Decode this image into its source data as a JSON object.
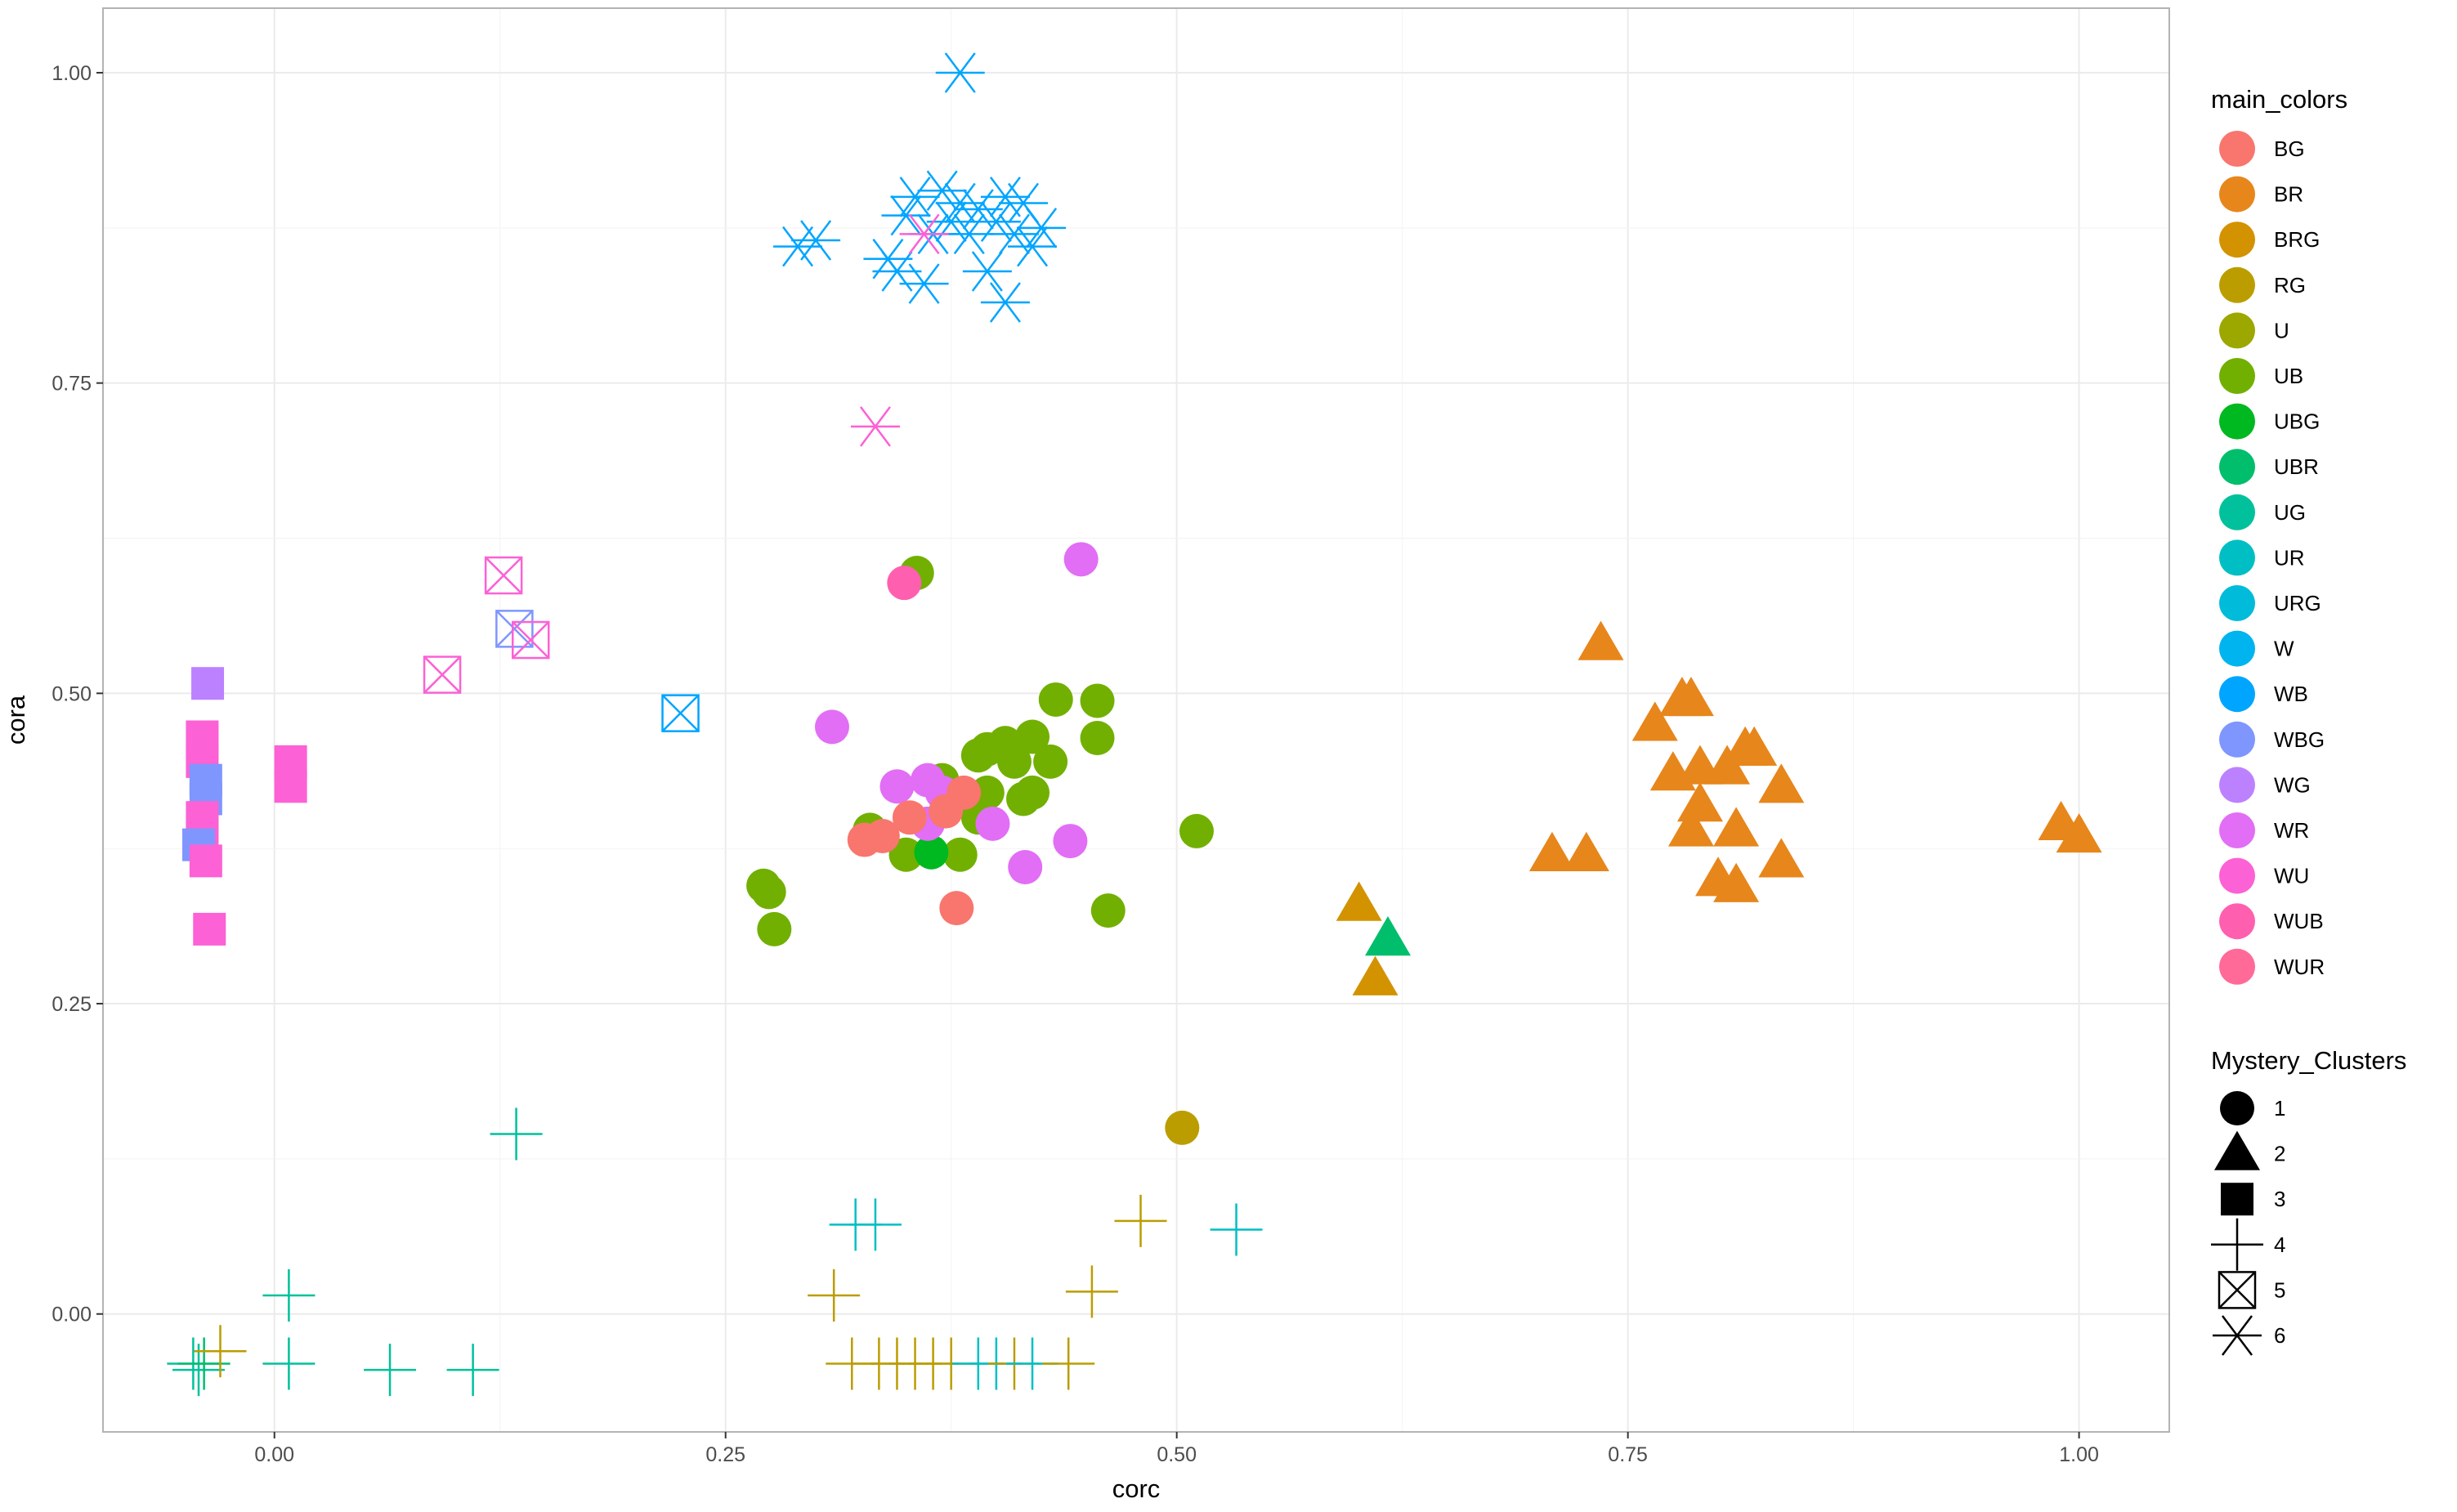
{
  "chart_data": {
    "type": "scatter",
    "title": "",
    "xlabel": "corc",
    "ylabel": "cora",
    "xlim": [
      -0.095,
      1.05
    ],
    "ylim": [
      -0.095,
      1.052
    ],
    "x_ticks": [
      "0.00",
      "0.25",
      "0.50",
      "0.75",
      "1.00"
    ],
    "y_ticks": [
      "0.00",
      "0.25",
      "0.50",
      "0.75",
      "1.00"
    ],
    "x_tick_values": [
      0,
      0.25,
      0.5,
      0.75,
      1.0
    ],
    "y_tick_values": [
      0,
      0.25,
      0.5,
      0.75,
      1.0
    ],
    "grid": true,
    "legend_placement": "right",
    "color_legend": {
      "title": "main_colors",
      "items": [
        {
          "label": "BG",
          "color": "#F8766D"
        },
        {
          "label": "BR",
          "color": "#E7861B"
        },
        {
          "label": "BRG",
          "color": "#D39200"
        },
        {
          "label": "RG",
          "color": "#BB9D00"
        },
        {
          "label": "U",
          "color": "#9CA700"
        },
        {
          "label": "UB",
          "color": "#71B000"
        },
        {
          "label": "UBG",
          "color": "#00B81F"
        },
        {
          "label": "UBR",
          "color": "#00BE6C"
        },
        {
          "label": "UG",
          "color": "#00C19B"
        },
        {
          "label": "UR",
          "color": "#00BFC4"
        },
        {
          "label": "URG",
          "color": "#00BBDA"
        },
        {
          "label": "W",
          "color": "#00B4EF"
        },
        {
          "label": "WB",
          "color": "#00A5FF"
        },
        {
          "label": "WBG",
          "color": "#7F96FF"
        },
        {
          "label": "WG",
          "color": "#BC81FF"
        },
        {
          "label": "WR",
          "color": "#E16EF5"
        },
        {
          "label": "WU",
          "color": "#FC61D5"
        },
        {
          "label": "WUB",
          "color": "#FF5FAF"
        },
        {
          "label": "WUR",
          "color": "#FF6A98"
        }
      ]
    },
    "shape_legend": {
      "title": "Mystery_Clusters",
      "items": [
        {
          "label": "1",
          "shape": "circle"
        },
        {
          "label": "2",
          "shape": "triangle"
        },
        {
          "label": "3",
          "shape": "square"
        },
        {
          "label": "4",
          "shape": "plus"
        },
        {
          "label": "5",
          "shape": "boxcross"
        },
        {
          "label": "6",
          "shape": "asterisk"
        }
      ]
    },
    "points": [
      {
        "x": 0.38,
        "y": 1.0,
        "shape": "asterisk",
        "color": "WB"
      },
      {
        "x": 0.29,
        "y": 0.86,
        "shape": "asterisk",
        "color": "WB"
      },
      {
        "x": 0.3,
        "y": 0.865,
        "shape": "asterisk",
        "color": "WB"
      },
      {
        "x": 0.34,
        "y": 0.85,
        "shape": "asterisk",
        "color": "WB"
      },
      {
        "x": 0.345,
        "y": 0.84,
        "shape": "asterisk",
        "color": "WB"
      },
      {
        "x": 0.35,
        "y": 0.885,
        "shape": "asterisk",
        "color": "WB"
      },
      {
        "x": 0.355,
        "y": 0.9,
        "shape": "asterisk",
        "color": "WB"
      },
      {
        "x": 0.36,
        "y": 0.83,
        "shape": "asterisk",
        "color": "WB"
      },
      {
        "x": 0.365,
        "y": 0.87,
        "shape": "asterisk",
        "color": "WB"
      },
      {
        "x": 0.37,
        "y": 0.905,
        "shape": "asterisk",
        "color": "WB"
      },
      {
        "x": 0.375,
        "y": 0.88,
        "shape": "asterisk",
        "color": "WB"
      },
      {
        "x": 0.38,
        "y": 0.895,
        "shape": "asterisk",
        "color": "WB"
      },
      {
        "x": 0.385,
        "y": 0.87,
        "shape": "asterisk",
        "color": "WB"
      },
      {
        "x": 0.39,
        "y": 0.89,
        "shape": "asterisk",
        "color": "WB"
      },
      {
        "x": 0.395,
        "y": 0.84,
        "shape": "asterisk",
        "color": "WB"
      },
      {
        "x": 0.4,
        "y": 0.88,
        "shape": "asterisk",
        "color": "WB"
      },
      {
        "x": 0.405,
        "y": 0.815,
        "shape": "asterisk",
        "color": "WB"
      },
      {
        "x": 0.405,
        "y": 0.9,
        "shape": "asterisk",
        "color": "WB"
      },
      {
        "x": 0.41,
        "y": 0.87,
        "shape": "asterisk",
        "color": "WB"
      },
      {
        "x": 0.415,
        "y": 0.895,
        "shape": "asterisk",
        "color": "WB"
      },
      {
        "x": 0.42,
        "y": 0.86,
        "shape": "asterisk",
        "color": "WB"
      },
      {
        "x": 0.425,
        "y": 0.875,
        "shape": "asterisk",
        "color": "WB"
      },
      {
        "x": 0.36,
        "y": 0.87,
        "shape": "asterisk",
        "color": "WU"
      },
      {
        "x": 0.333,
        "y": 0.715,
        "shape": "asterisk",
        "color": "WU"
      },
      {
        "x": 0.127,
        "y": 0.595,
        "shape": "boxcross",
        "color": "WU"
      },
      {
        "x": 0.093,
        "y": 0.515,
        "shape": "boxcross",
        "color": "WU"
      },
      {
        "x": 0.133,
        "y": 0.552,
        "shape": "boxcross",
        "color": "WBG"
      },
      {
        "x": 0.142,
        "y": 0.543,
        "shape": "boxcross",
        "color": "WU"
      },
      {
        "x": 0.225,
        "y": 0.484,
        "shape": "boxcross",
        "color": "WB"
      },
      {
        "x": -0.037,
        "y": 0.508,
        "shape": "square",
        "color": "WG"
      },
      {
        "x": -0.04,
        "y": 0.465,
        "shape": "square",
        "color": "WU"
      },
      {
        "x": -0.04,
        "y": 0.445,
        "shape": "square",
        "color": "WU"
      },
      {
        "x": -0.038,
        "y": 0.43,
        "shape": "square",
        "color": "WBG"
      },
      {
        "x": -0.038,
        "y": 0.415,
        "shape": "square",
        "color": "WBG"
      },
      {
        "x": -0.04,
        "y": 0.4,
        "shape": "square",
        "color": "WU"
      },
      {
        "x": -0.04,
        "y": 0.385,
        "shape": "square",
        "color": "WU"
      },
      {
        "x": -0.042,
        "y": 0.378,
        "shape": "square",
        "color": "WBG"
      },
      {
        "x": -0.038,
        "y": 0.365,
        "shape": "square",
        "color": "WU"
      },
      {
        "x": -0.036,
        "y": 0.31,
        "shape": "square",
        "color": "WU"
      },
      {
        "x": 0.009,
        "y": 0.445,
        "shape": "square",
        "color": "WU"
      },
      {
        "x": 0.009,
        "y": 0.425,
        "shape": "square",
        "color": "WU"
      },
      {
        "x": 0.356,
        "y": 0.597,
        "shape": "circle",
        "color": "UB"
      },
      {
        "x": 0.349,
        "y": 0.589,
        "shape": "circle",
        "color": "WUB"
      },
      {
        "x": 0.447,
        "y": 0.608,
        "shape": "circle",
        "color": "WR"
      },
      {
        "x": 0.309,
        "y": 0.473,
        "shape": "circle",
        "color": "WR"
      },
      {
        "x": 0.433,
        "y": 0.495,
        "shape": "circle",
        "color": "UB"
      },
      {
        "x": 0.456,
        "y": 0.494,
        "shape": "circle",
        "color": "UB"
      },
      {
        "x": 0.456,
        "y": 0.464,
        "shape": "circle",
        "color": "UB"
      },
      {
        "x": 0.42,
        "y": 0.465,
        "shape": "circle",
        "color": "UB"
      },
      {
        "x": 0.405,
        "y": 0.46,
        "shape": "circle",
        "color": "UB"
      },
      {
        "x": 0.395,
        "y": 0.455,
        "shape": "circle",
        "color": "UB"
      },
      {
        "x": 0.39,
        "y": 0.45,
        "shape": "circle",
        "color": "UB"
      },
      {
        "x": 0.41,
        "y": 0.445,
        "shape": "circle",
        "color": "UB"
      },
      {
        "x": 0.43,
        "y": 0.445,
        "shape": "circle",
        "color": "UB"
      },
      {
        "x": 0.37,
        "y": 0.43,
        "shape": "circle",
        "color": "UB"
      },
      {
        "x": 0.395,
        "y": 0.42,
        "shape": "circle",
        "color": "UB"
      },
      {
        "x": 0.415,
        "y": 0.415,
        "shape": "circle",
        "color": "UB"
      },
      {
        "x": 0.42,
        "y": 0.42,
        "shape": "circle",
        "color": "UB"
      },
      {
        "x": 0.39,
        "y": 0.4,
        "shape": "circle",
        "color": "UB"
      },
      {
        "x": 0.33,
        "y": 0.39,
        "shape": "circle",
        "color": "UB"
      },
      {
        "x": 0.35,
        "y": 0.37,
        "shape": "circle",
        "color": "UB"
      },
      {
        "x": 0.38,
        "y": 0.37,
        "shape": "circle",
        "color": "UB"
      },
      {
        "x": 0.271,
        "y": 0.345,
        "shape": "circle",
        "color": "UB"
      },
      {
        "x": 0.274,
        "y": 0.34,
        "shape": "circle",
        "color": "UB"
      },
      {
        "x": 0.277,
        "y": 0.31,
        "shape": "circle",
        "color": "UB"
      },
      {
        "x": 0.462,
        "y": 0.325,
        "shape": "circle",
        "color": "UB"
      },
      {
        "x": 0.511,
        "y": 0.389,
        "shape": "circle",
        "color": "UB"
      },
      {
        "x": 0.364,
        "y": 0.372,
        "shape": "circle",
        "color": "UBG"
      },
      {
        "x": 0.345,
        "y": 0.425,
        "shape": "circle",
        "color": "WR"
      },
      {
        "x": 0.362,
        "y": 0.43,
        "shape": "circle",
        "color": "WR"
      },
      {
        "x": 0.37,
        "y": 0.42,
        "shape": "circle",
        "color": "WR"
      },
      {
        "x": 0.362,
        "y": 0.395,
        "shape": "circle",
        "color": "WR"
      },
      {
        "x": 0.398,
        "y": 0.395,
        "shape": "circle",
        "color": "WR"
      },
      {
        "x": 0.441,
        "y": 0.381,
        "shape": "circle",
        "color": "WR"
      },
      {
        "x": 0.416,
        "y": 0.36,
        "shape": "circle",
        "color": "WR"
      },
      {
        "x": 0.327,
        "y": 0.382,
        "shape": "circle",
        "color": "BG"
      },
      {
        "x": 0.337,
        "y": 0.385,
        "shape": "circle",
        "color": "BG"
      },
      {
        "x": 0.352,
        "y": 0.4,
        "shape": "circle",
        "color": "BG"
      },
      {
        "x": 0.372,
        "y": 0.405,
        "shape": "circle",
        "color": "BG"
      },
      {
        "x": 0.382,
        "y": 0.42,
        "shape": "circle",
        "color": "BG"
      },
      {
        "x": 0.378,
        "y": 0.327,
        "shape": "circle",
        "color": "BG"
      },
      {
        "x": 0.503,
        "y": 0.15,
        "shape": "circle",
        "color": "RG"
      },
      {
        "x": 0.735,
        "y": 0.54,
        "shape": "triangle",
        "color": "BR"
      },
      {
        "x": 0.765,
        "y": 0.475,
        "shape": "triangle",
        "color": "BR"
      },
      {
        "x": 0.78,
        "y": 0.495,
        "shape": "triangle",
        "color": "BR"
      },
      {
        "x": 0.785,
        "y": 0.495,
        "shape": "triangle",
        "color": "BR"
      },
      {
        "x": 0.775,
        "y": 0.435,
        "shape": "triangle",
        "color": "BR"
      },
      {
        "x": 0.79,
        "y": 0.44,
        "shape": "triangle",
        "color": "BR"
      },
      {
        "x": 0.805,
        "y": 0.44,
        "shape": "triangle",
        "color": "BR"
      },
      {
        "x": 0.815,
        "y": 0.455,
        "shape": "triangle",
        "color": "BR"
      },
      {
        "x": 0.82,
        "y": 0.455,
        "shape": "triangle",
        "color": "BR"
      },
      {
        "x": 0.79,
        "y": 0.41,
        "shape": "triangle",
        "color": "BR"
      },
      {
        "x": 0.785,
        "y": 0.39,
        "shape": "triangle",
        "color": "BR"
      },
      {
        "x": 0.81,
        "y": 0.39,
        "shape": "triangle",
        "color": "BR"
      },
      {
        "x": 0.835,
        "y": 0.425,
        "shape": "triangle",
        "color": "BR"
      },
      {
        "x": 0.8,
        "y": 0.35,
        "shape": "triangle",
        "color": "BR"
      },
      {
        "x": 0.81,
        "y": 0.345,
        "shape": "triangle",
        "color": "BR"
      },
      {
        "x": 0.835,
        "y": 0.365,
        "shape": "triangle",
        "color": "BR"
      },
      {
        "x": 0.708,
        "y": 0.37,
        "shape": "triangle",
        "color": "BR"
      },
      {
        "x": 0.727,
        "y": 0.37,
        "shape": "triangle",
        "color": "BR"
      },
      {
        "x": 0.99,
        "y": 0.395,
        "shape": "triangle",
        "color": "BR"
      },
      {
        "x": 1.0,
        "y": 0.385,
        "shape": "triangle",
        "color": "BR"
      },
      {
        "x": 0.601,
        "y": 0.33,
        "shape": "triangle",
        "color": "BRG"
      },
      {
        "x": 0.61,
        "y": 0.27,
        "shape": "triangle",
        "color": "BRG"
      },
      {
        "x": 0.617,
        "y": 0.302,
        "shape": "triangle",
        "color": "UBR"
      },
      {
        "x": 0.134,
        "y": 0.145,
        "shape": "plus",
        "color": "UG"
      },
      {
        "x": 0.008,
        "y": 0.015,
        "shape": "plus",
        "color": "UG"
      },
      {
        "x": 0.008,
        "y": -0.04,
        "shape": "plus",
        "color": "UG"
      },
      {
        "x": 0.064,
        "y": -0.045,
        "shape": "plus",
        "color": "UG"
      },
      {
        "x": 0.11,
        "y": -0.045,
        "shape": "plus",
        "color": "UG"
      },
      {
        "x": -0.045,
        "y": -0.04,
        "shape": "plus",
        "color": "UG"
      },
      {
        "x": -0.042,
        "y": -0.045,
        "shape": "plus",
        "color": "UG"
      },
      {
        "x": -0.039,
        "y": -0.04,
        "shape": "plus",
        "color": "UBR"
      },
      {
        "x": -0.03,
        "y": -0.03,
        "shape": "plus",
        "color": "RG"
      },
      {
        "x": 0.322,
        "y": 0.072,
        "shape": "plus",
        "color": "UR"
      },
      {
        "x": 0.333,
        "y": 0.072,
        "shape": "plus",
        "color": "UR"
      },
      {
        "x": 0.533,
        "y": 0.068,
        "shape": "plus",
        "color": "UR"
      },
      {
        "x": 0.48,
        "y": 0.075,
        "shape": "plus",
        "color": "RG"
      },
      {
        "x": 0.31,
        "y": 0.015,
        "shape": "plus",
        "color": "RG"
      },
      {
        "x": 0.453,
        "y": 0.018,
        "shape": "plus",
        "color": "RG"
      },
      {
        "x": 0.32,
        "y": -0.04,
        "shape": "plus",
        "color": "RG"
      },
      {
        "x": 0.335,
        "y": -0.04,
        "shape": "plus",
        "color": "RG"
      },
      {
        "x": 0.345,
        "y": -0.04,
        "shape": "plus",
        "color": "RG"
      },
      {
        "x": 0.355,
        "y": -0.04,
        "shape": "plus",
        "color": "RG"
      },
      {
        "x": 0.365,
        "y": -0.04,
        "shape": "plus",
        "color": "RG"
      },
      {
        "x": 0.375,
        "y": -0.04,
        "shape": "plus",
        "color": "RG"
      },
      {
        "x": 0.39,
        "y": -0.04,
        "shape": "plus",
        "color": "UR"
      },
      {
        "x": 0.4,
        "y": -0.04,
        "shape": "plus",
        "color": "UR"
      },
      {
        "x": 0.41,
        "y": -0.04,
        "shape": "plus",
        "color": "RG"
      },
      {
        "x": 0.42,
        "y": -0.04,
        "shape": "plus",
        "color": "UR"
      },
      {
        "x": 0.44,
        "y": -0.04,
        "shape": "plus",
        "color": "RG"
      }
    ]
  }
}
